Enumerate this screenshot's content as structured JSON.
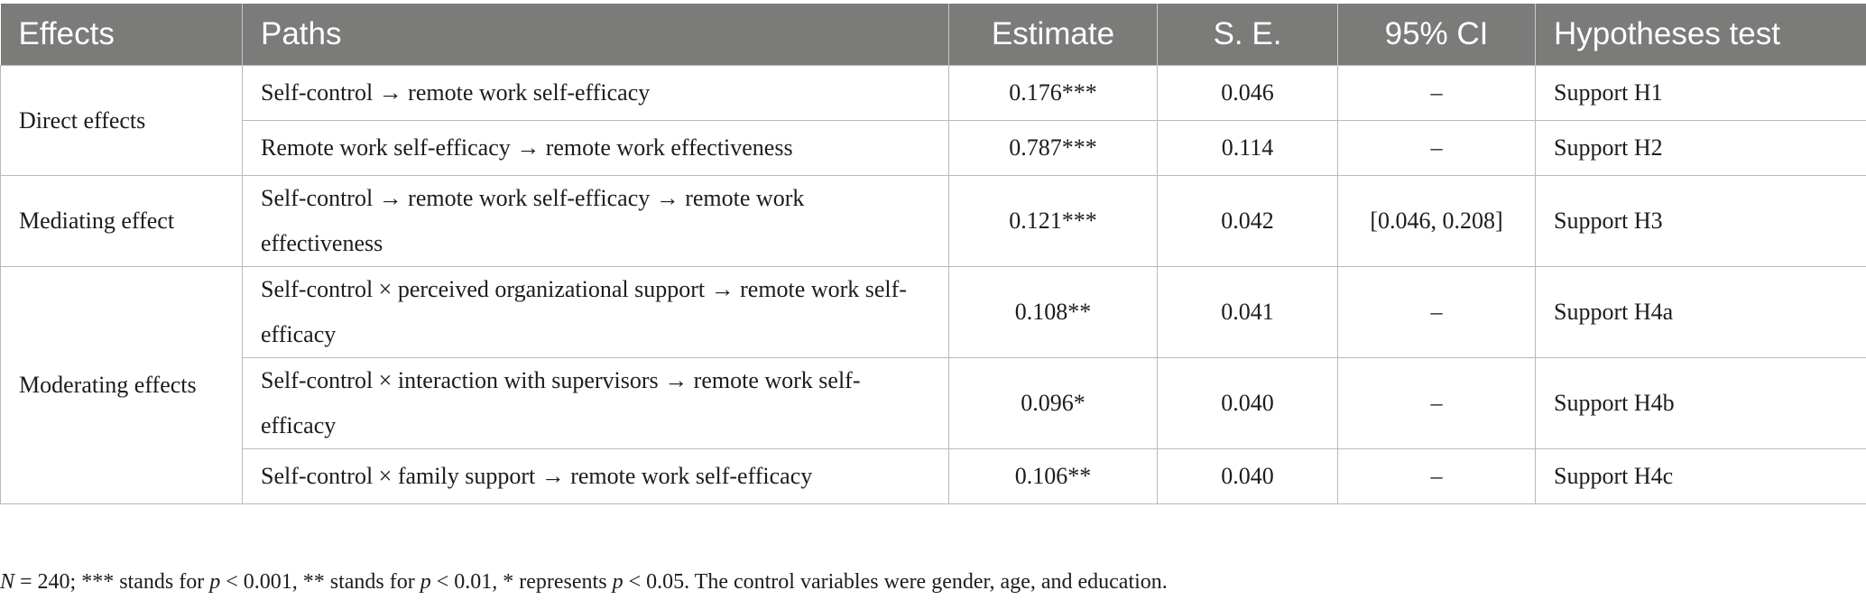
{
  "table": {
    "headers": [
      "Effects",
      "Paths",
      "Estimate",
      "S. E.",
      "95% CI",
      "Hypotheses test"
    ],
    "groups": {
      "direct": "Direct effects",
      "mediating": "Mediating effect",
      "moderating": "Moderating effects"
    },
    "rows": [
      {
        "path": "Self-control → remote work self-efficacy",
        "estimate": "0.176***",
        "se": "0.046",
        "ci": "–",
        "test": "Support H1"
      },
      {
        "path": "Remote work self-efficacy → remote work effectiveness",
        "estimate": "0.787***",
        "se": "0.114",
        "ci": "–",
        "test": "Support H2"
      },
      {
        "path": "Self-control → remote work self-efficacy → remote work effectiveness",
        "estimate": "0.121***",
        "se": "0.042",
        "ci": "[0.046, 0.208]",
        "test": "Support H3"
      },
      {
        "path": "Self-control × perceived organizational support → remote work self-efficacy",
        "estimate": "0.108**",
        "se": "0.041",
        "ci": "–",
        "test": "Support H4a"
      },
      {
        "path": "Self-control × interaction with supervisors → remote work self-efficacy",
        "estimate": "0.096*",
        "se": "0.040",
        "ci": "–",
        "test": "Support H4b"
      },
      {
        "path": "Self-control × family support → remote work self-efficacy",
        "estimate": "0.106**",
        "se": "0.040",
        "ci": "–",
        "test": "Support H4c"
      }
    ]
  },
  "footnote": {
    "n_label": "N",
    "n_value": " = 240; *** stands for ",
    "p1": "p",
    "t1": " < 0.001, ** stands for ",
    "p2": "p",
    "t2": " < 0.01, * represents ",
    "p3": "p",
    "t3": " < 0.05. The control variables were gender, age, and education."
  }
}
